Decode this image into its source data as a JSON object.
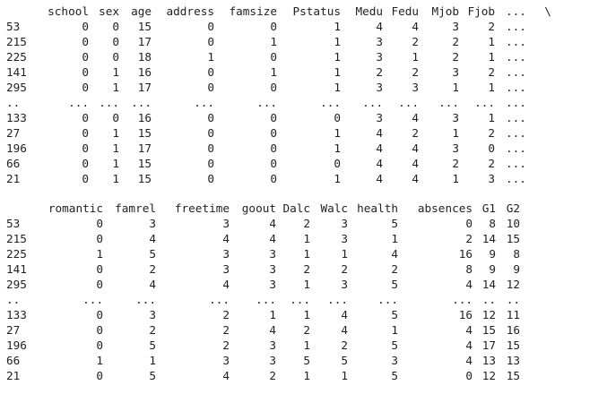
{
  "table1": {
    "columns": [
      "school",
      "sex",
      "age",
      "address",
      "famsize",
      "Pstatus",
      "Medu",
      "Fedu",
      "Mjob",
      "Fjob",
      "...",
      "\\"
    ],
    "rows": [
      {
        "index": "53",
        "values": [
          "0",
          "0",
          "15",
          "0",
          "0",
          "1",
          "4",
          "4",
          "3",
          "2",
          "...",
          ""
        ]
      },
      {
        "index": "215",
        "values": [
          "0",
          "0",
          "17",
          "0",
          "1",
          "1",
          "3",
          "2",
          "2",
          "1",
          "...",
          ""
        ]
      },
      {
        "index": "225",
        "values": [
          "0",
          "0",
          "18",
          "1",
          "0",
          "1",
          "3",
          "1",
          "2",
          "1",
          "...",
          ""
        ]
      },
      {
        "index": "141",
        "values": [
          "0",
          "1",
          "16",
          "0",
          "1",
          "1",
          "2",
          "2",
          "3",
          "2",
          "...",
          ""
        ]
      },
      {
        "index": "295",
        "values": [
          "0",
          "1",
          "17",
          "0",
          "0",
          "1",
          "3",
          "3",
          "1",
          "1",
          "...",
          ""
        ]
      },
      {
        "index": "..",
        "values": [
          "...",
          "...",
          "...",
          "...",
          "...",
          "...",
          "...",
          "...",
          "...",
          "...",
          "...",
          ""
        ]
      },
      {
        "index": "133",
        "values": [
          "0",
          "0",
          "16",
          "0",
          "0",
          "0",
          "3",
          "4",
          "3",
          "1",
          "...",
          ""
        ]
      },
      {
        "index": "27",
        "values": [
          "0",
          "1",
          "15",
          "0",
          "0",
          "1",
          "4",
          "2",
          "1",
          "2",
          "...",
          ""
        ]
      },
      {
        "index": "196",
        "values": [
          "0",
          "1",
          "17",
          "0",
          "0",
          "1",
          "4",
          "4",
          "3",
          "0",
          "...",
          ""
        ]
      },
      {
        "index": "66",
        "values": [
          "0",
          "1",
          "15",
          "0",
          "0",
          "0",
          "4",
          "4",
          "2",
          "2",
          "...",
          ""
        ]
      },
      {
        "index": "21",
        "values": [
          "0",
          "1",
          "15",
          "0",
          "0",
          "1",
          "4",
          "4",
          "1",
          "3",
          "...",
          ""
        ]
      }
    ]
  },
  "table2": {
    "columns": [
      "romantic",
      "famrel",
      "freetime",
      "goout",
      "Dalc",
      "Walc",
      "health",
      "absences",
      "G1",
      "G2"
    ],
    "rows": [
      {
        "index": "53",
        "values": [
          "0",
          "3",
          "3",
          "4",
          "2",
          "3",
          "5",
          "0",
          "8",
          "10"
        ]
      },
      {
        "index": "215",
        "values": [
          "0",
          "4",
          "4",
          "4",
          "1",
          "3",
          "1",
          "2",
          "14",
          "15"
        ]
      },
      {
        "index": "225",
        "values": [
          "1",
          "5",
          "3",
          "3",
          "1",
          "1",
          "4",
          "16",
          "9",
          "8"
        ]
      },
      {
        "index": "141",
        "values": [
          "0",
          "2",
          "3",
          "3",
          "2",
          "2",
          "2",
          "8",
          "9",
          "9"
        ]
      },
      {
        "index": "295",
        "values": [
          "0",
          "4",
          "4",
          "3",
          "1",
          "3",
          "5",
          "4",
          "14",
          "12"
        ]
      },
      {
        "index": "..",
        "values": [
          "...",
          "...",
          "...",
          "...",
          "...",
          "...",
          "...",
          "...",
          "..",
          ".."
        ]
      },
      {
        "index": "133",
        "values": [
          "0",
          "3",
          "2",
          "1",
          "1",
          "4",
          "5",
          "16",
          "12",
          "11"
        ]
      },
      {
        "index": "27",
        "values": [
          "0",
          "2",
          "2",
          "4",
          "2",
          "4",
          "1",
          "4",
          "15",
          "16"
        ]
      },
      {
        "index": "196",
        "values": [
          "0",
          "5",
          "2",
          "3",
          "1",
          "2",
          "5",
          "4",
          "17",
          "15"
        ]
      },
      {
        "index": "66",
        "values": [
          "1",
          "1",
          "3",
          "3",
          "5",
          "5",
          "3",
          "4",
          "13",
          "13"
        ]
      },
      {
        "index": "21",
        "values": [
          "0",
          "5",
          "4",
          "2",
          "1",
          "1",
          "5",
          "0",
          "12",
          "15"
        ]
      }
    ]
  }
}
